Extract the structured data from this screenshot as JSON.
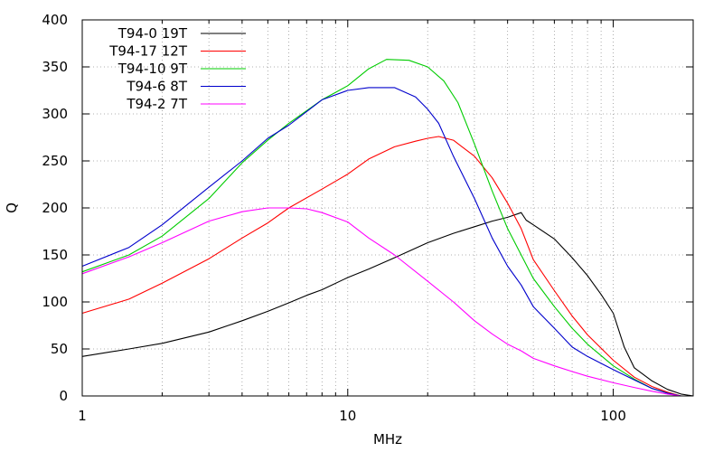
{
  "chart_data": {
    "type": "line",
    "title": "",
    "xlabel": "MHz",
    "ylabel": "Q",
    "xscale": "log",
    "xlim": [
      1,
      200
    ],
    "ylim": [
      0,
      400
    ],
    "grid": true,
    "legend_position": "top-left",
    "xticks": [
      {
        "value": 1,
        "label": "1"
      },
      {
        "value": 10,
        "label": "10"
      },
      {
        "value": 100,
        "label": "100"
      }
    ],
    "yticks": [
      0,
      50,
      100,
      150,
      200,
      250,
      300,
      350,
      400
    ],
    "series": [
      {
        "name": "T94-0 19T",
        "color": "#000000",
        "points": [
          [
            1,
            42
          ],
          [
            1.5,
            50
          ],
          [
            2,
            56
          ],
          [
            3,
            68
          ],
          [
            4,
            80
          ],
          [
            5,
            90
          ],
          [
            6,
            99
          ],
          [
            7,
            107
          ],
          [
            8,
            113
          ],
          [
            10,
            126
          ],
          [
            12,
            135
          ],
          [
            15,
            147
          ],
          [
            20,
            163
          ],
          [
            25,
            173
          ],
          [
            30,
            180
          ],
          [
            35,
            186
          ],
          [
            40,
            190
          ],
          [
            45,
            195
          ],
          [
            47,
            187
          ],
          [
            50,
            182
          ],
          [
            60,
            167
          ],
          [
            70,
            147
          ],
          [
            80,
            128
          ],
          [
            90,
            108
          ],
          [
            100,
            88
          ],
          [
            110,
            52
          ],
          [
            120,
            30
          ],
          [
            140,
            16
          ],
          [
            160,
            7
          ],
          [
            180,
            2
          ],
          [
            200,
            0
          ]
        ]
      },
      {
        "name": "T94-17 12T",
        "color": "#ff0000",
        "points": [
          [
            1,
            88
          ],
          [
            1.5,
            103
          ],
          [
            2,
            120
          ],
          [
            3,
            146
          ],
          [
            4,
            168
          ],
          [
            5,
            184
          ],
          [
            6,
            200
          ],
          [
            8,
            220
          ],
          [
            10,
            236
          ],
          [
            12,
            252
          ],
          [
            15,
            265
          ],
          [
            18,
            271
          ],
          [
            20,
            274
          ],
          [
            22,
            276
          ],
          [
            25,
            272
          ],
          [
            30,
            255
          ],
          [
            35,
            232
          ],
          [
            40,
            205
          ],
          [
            45,
            178
          ],
          [
            50,
            145
          ],
          [
            60,
            112
          ],
          [
            70,
            85
          ],
          [
            80,
            65
          ],
          [
            100,
            38
          ],
          [
            120,
            20
          ],
          [
            140,
            10
          ],
          [
            160,
            4
          ],
          [
            180,
            0
          ]
        ]
      },
      {
        "name": "T94-10 9T",
        "color": "#00cc00",
        "points": [
          [
            1,
            132
          ],
          [
            1.5,
            150
          ],
          [
            2,
            170
          ],
          [
            3,
            210
          ],
          [
            4,
            248
          ],
          [
            5,
            272
          ],
          [
            6,
            290
          ],
          [
            8,
            315
          ],
          [
            10,
            330
          ],
          [
            12,
            348
          ],
          [
            14,
            358
          ],
          [
            17,
            357
          ],
          [
            20,
            350
          ],
          [
            23,
            335
          ],
          [
            26,
            312
          ],
          [
            30,
            268
          ],
          [
            35,
            218
          ],
          [
            40,
            178
          ],
          [
            45,
            150
          ],
          [
            50,
            125
          ],
          [
            60,
            95
          ],
          [
            70,
            72
          ],
          [
            80,
            55
          ],
          [
            100,
            32
          ],
          [
            120,
            18
          ],
          [
            140,
            8
          ],
          [
            160,
            3
          ],
          [
            180,
            0
          ]
        ]
      },
      {
        "name": "T94-6 8T",
        "color": "#0000cc",
        "points": [
          [
            1,
            138
          ],
          [
            1.5,
            158
          ],
          [
            2,
            182
          ],
          [
            3,
            222
          ],
          [
            4,
            250
          ],
          [
            5,
            274
          ],
          [
            6,
            288
          ],
          [
            8,
            315
          ],
          [
            10,
            325
          ],
          [
            12,
            328
          ],
          [
            15,
            328
          ],
          [
            18,
            318
          ],
          [
            20,
            305
          ],
          [
            22,
            290
          ],
          [
            25,
            255
          ],
          [
            30,
            210
          ],
          [
            35,
            168
          ],
          [
            40,
            138
          ],
          [
            45,
            118
          ],
          [
            50,
            95
          ],
          [
            60,
            72
          ],
          [
            70,
            52
          ],
          [
            80,
            42
          ],
          [
            100,
            28
          ],
          [
            120,
            17
          ],
          [
            140,
            8
          ],
          [
            160,
            3
          ],
          [
            180,
            0
          ]
        ]
      },
      {
        "name": "T94-2 7T",
        "color": "#ff00ff",
        "points": [
          [
            1,
            130
          ],
          [
            1.5,
            148
          ],
          [
            2,
            163
          ],
          [
            3,
            186
          ],
          [
            4,
            196
          ],
          [
            5,
            200
          ],
          [
            6,
            200
          ],
          [
            7,
            199
          ],
          [
            8,
            195
          ],
          [
            10,
            185
          ],
          [
            12,
            168
          ],
          [
            15,
            150
          ],
          [
            20,
            122
          ],
          [
            25,
            100
          ],
          [
            30,
            80
          ],
          [
            35,
            66
          ],
          [
            40,
            55
          ],
          [
            45,
            48
          ],
          [
            50,
            40
          ],
          [
            60,
            32
          ],
          [
            70,
            26
          ],
          [
            80,
            21
          ],
          [
            100,
            14
          ],
          [
            120,
            9
          ],
          [
            140,
            5
          ],
          [
            160,
            2
          ],
          [
            180,
            0
          ]
        ]
      }
    ]
  }
}
